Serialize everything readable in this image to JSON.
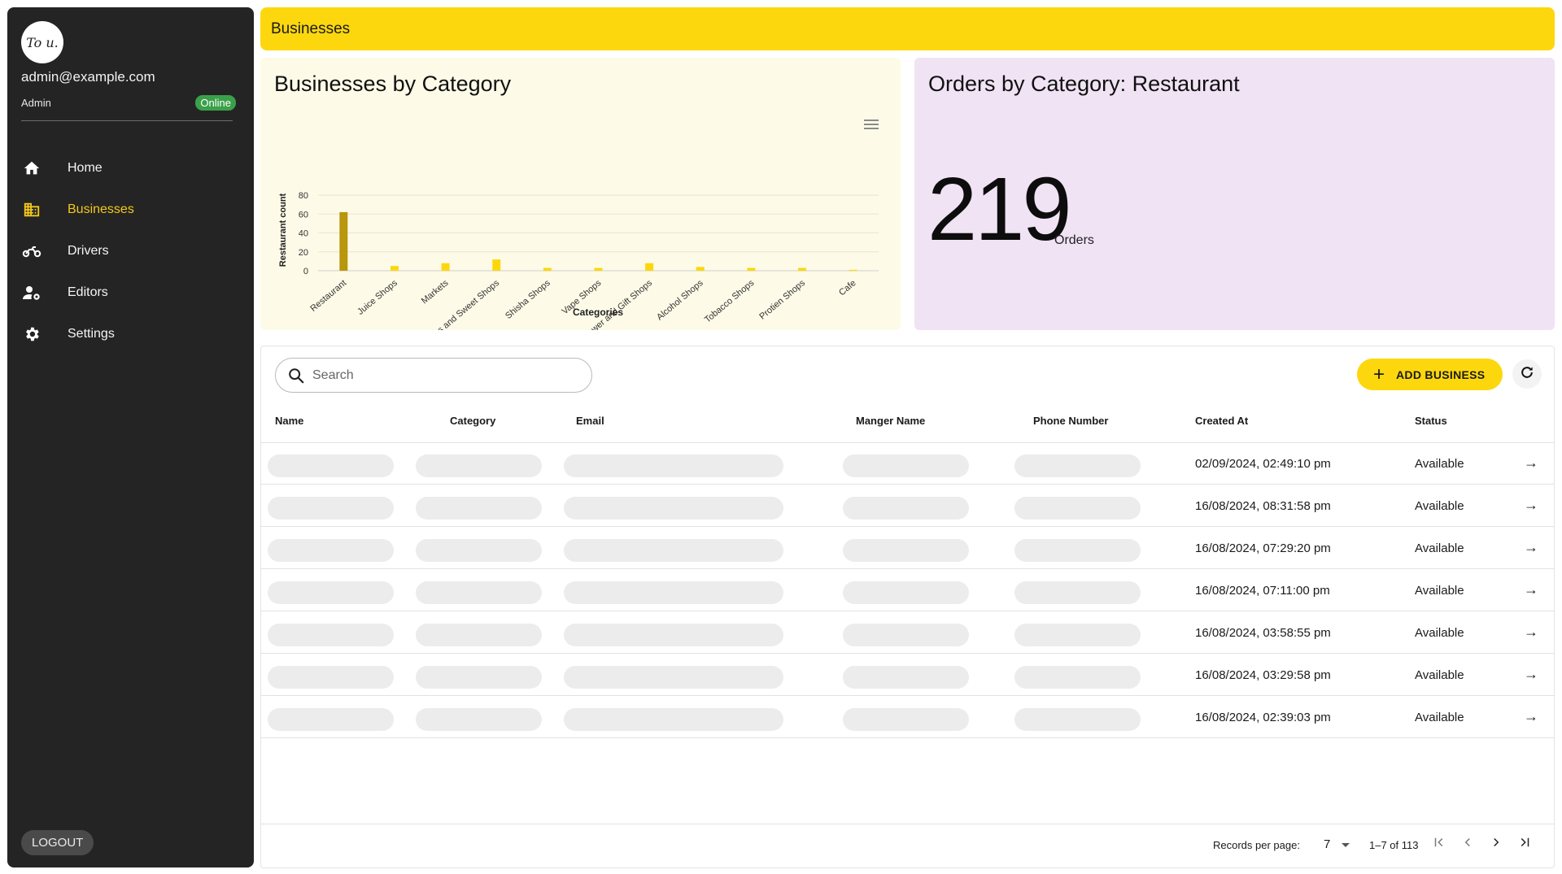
{
  "sidebar": {
    "logo_text": "To u.",
    "user_email": "admin@example.com",
    "user_role": "Admin",
    "status": "Online",
    "nav": [
      {
        "label": "Home",
        "icon": "home-icon"
      },
      {
        "label": "Businesses",
        "icon": "business-icon",
        "active": true
      },
      {
        "label": "Drivers",
        "icon": "motorcycle-icon"
      },
      {
        "label": "Editors",
        "icon": "user-settings-icon"
      },
      {
        "label": "Settings",
        "icon": "gear-icon"
      }
    ],
    "logout_label": "LOGOUT"
  },
  "header": {
    "title": "Businesses"
  },
  "colors": {
    "accent": "#fdd70d",
    "sidebar_bg": "#242424",
    "active_bar": "#b8960d",
    "status_green": "#3aa04a"
  },
  "chart_card": {
    "title": "Businesses by Category"
  },
  "chart_data": {
    "type": "bar",
    "title": "Businesses by Category",
    "xlabel": "Categories",
    "ylabel": "Restaurant count",
    "ylim": [
      0,
      80
    ],
    "yticks": [
      0,
      20,
      40,
      60,
      80
    ],
    "grid": true,
    "categories": [
      "Restaurant",
      "Juice Shops",
      "Markets",
      "Bakeries and Sweet Shops",
      "Shisha Shops",
      "Vape Shops",
      "Flower and Gift Shops",
      "Alcohol Shops",
      "Tobacco Shops",
      "Protien Shops",
      "Cafe"
    ],
    "values": [
      62,
      5,
      8,
      12,
      3,
      3,
      8,
      4,
      3,
      3,
      1
    ],
    "highlighted_category": "Restaurant"
  },
  "stat_card": {
    "title": "Orders by Category: Restaurant",
    "value": "219",
    "unit": "Orders"
  },
  "table": {
    "search_placeholder": "Search",
    "add_button_label": "ADD BUSINESS",
    "columns": [
      "Name",
      "Category",
      "Email",
      "Manger Name",
      "Phone Number",
      "Created At",
      "Status"
    ],
    "rows": [
      {
        "created_at": "02/09/2024, 02:49:10 pm",
        "status": "Available"
      },
      {
        "created_at": "16/08/2024, 08:31:58 pm",
        "status": "Available"
      },
      {
        "created_at": "16/08/2024, 07:29:20 pm",
        "status": "Available"
      },
      {
        "created_at": "16/08/2024, 07:11:00 pm",
        "status": "Available"
      },
      {
        "created_at": "16/08/2024, 03:58:55 pm",
        "status": "Available"
      },
      {
        "created_at": "16/08/2024, 03:29:58 pm",
        "status": "Available"
      },
      {
        "created_at": "16/08/2024, 02:39:03 pm",
        "status": "Available"
      }
    ],
    "pagination": {
      "records_label": "Records per page:",
      "records_per_page": "7",
      "range": "1–7 of 113"
    }
  }
}
